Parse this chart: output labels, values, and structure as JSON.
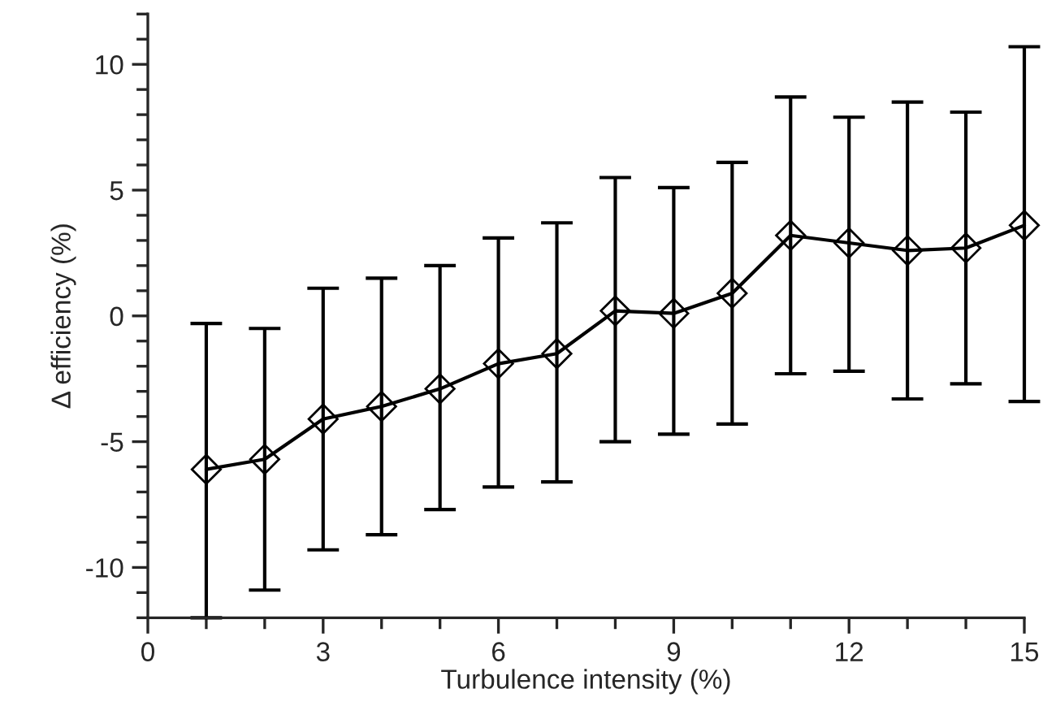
{
  "chart_data": {
    "type": "line",
    "xlabel": "Turbulence intensity (%)",
    "ylabel": "Δ efficiency (%)",
    "x": [
      1,
      2,
      3,
      4,
      5,
      6,
      7,
      8,
      9,
      10,
      11,
      12,
      13,
      14,
      15
    ],
    "series": [
      {
        "color": "#000000",
        "values": [
          -6.1,
          -5.7,
          -4.1,
          -3.6,
          -2.9,
          -1.9,
          -1.5,
          0.2,
          0.1,
          0.9,
          3.2,
          2.9,
          2.6,
          2.7,
          3.6
        ],
        "errors": [
          [
            -12,
            -0.3
          ],
          [
            -10.9,
            -0.5
          ],
          [
            -9.3,
            1.1
          ],
          [
            -8.7,
            1.5
          ],
          [
            -7.7,
            2.0
          ],
          [
            -6.8,
            3.1
          ],
          [
            -6.6,
            3.7
          ],
          [
            -5.0,
            5.5
          ],
          [
            -4.7,
            5.1
          ],
          [
            -4.3,
            6.1
          ],
          [
            -2.3,
            8.7
          ],
          [
            -2.2,
            7.9
          ],
          [
            -3.3,
            8.5
          ],
          [
            -2.7,
            8.1
          ],
          [
            -3.4,
            10.7
          ]
        ]
      }
    ],
    "xlim": [
      0,
      15
    ],
    "xticks": [
      0,
      3,
      6,
      9,
      12,
      15
    ],
    "ylim": [
      -12,
      12
    ],
    "yticks": [
      -10,
      -5,
      0,
      5,
      10
    ],
    "marker": "diamond",
    "line_style": "solid",
    "grid": false,
    "legend": false
  }
}
